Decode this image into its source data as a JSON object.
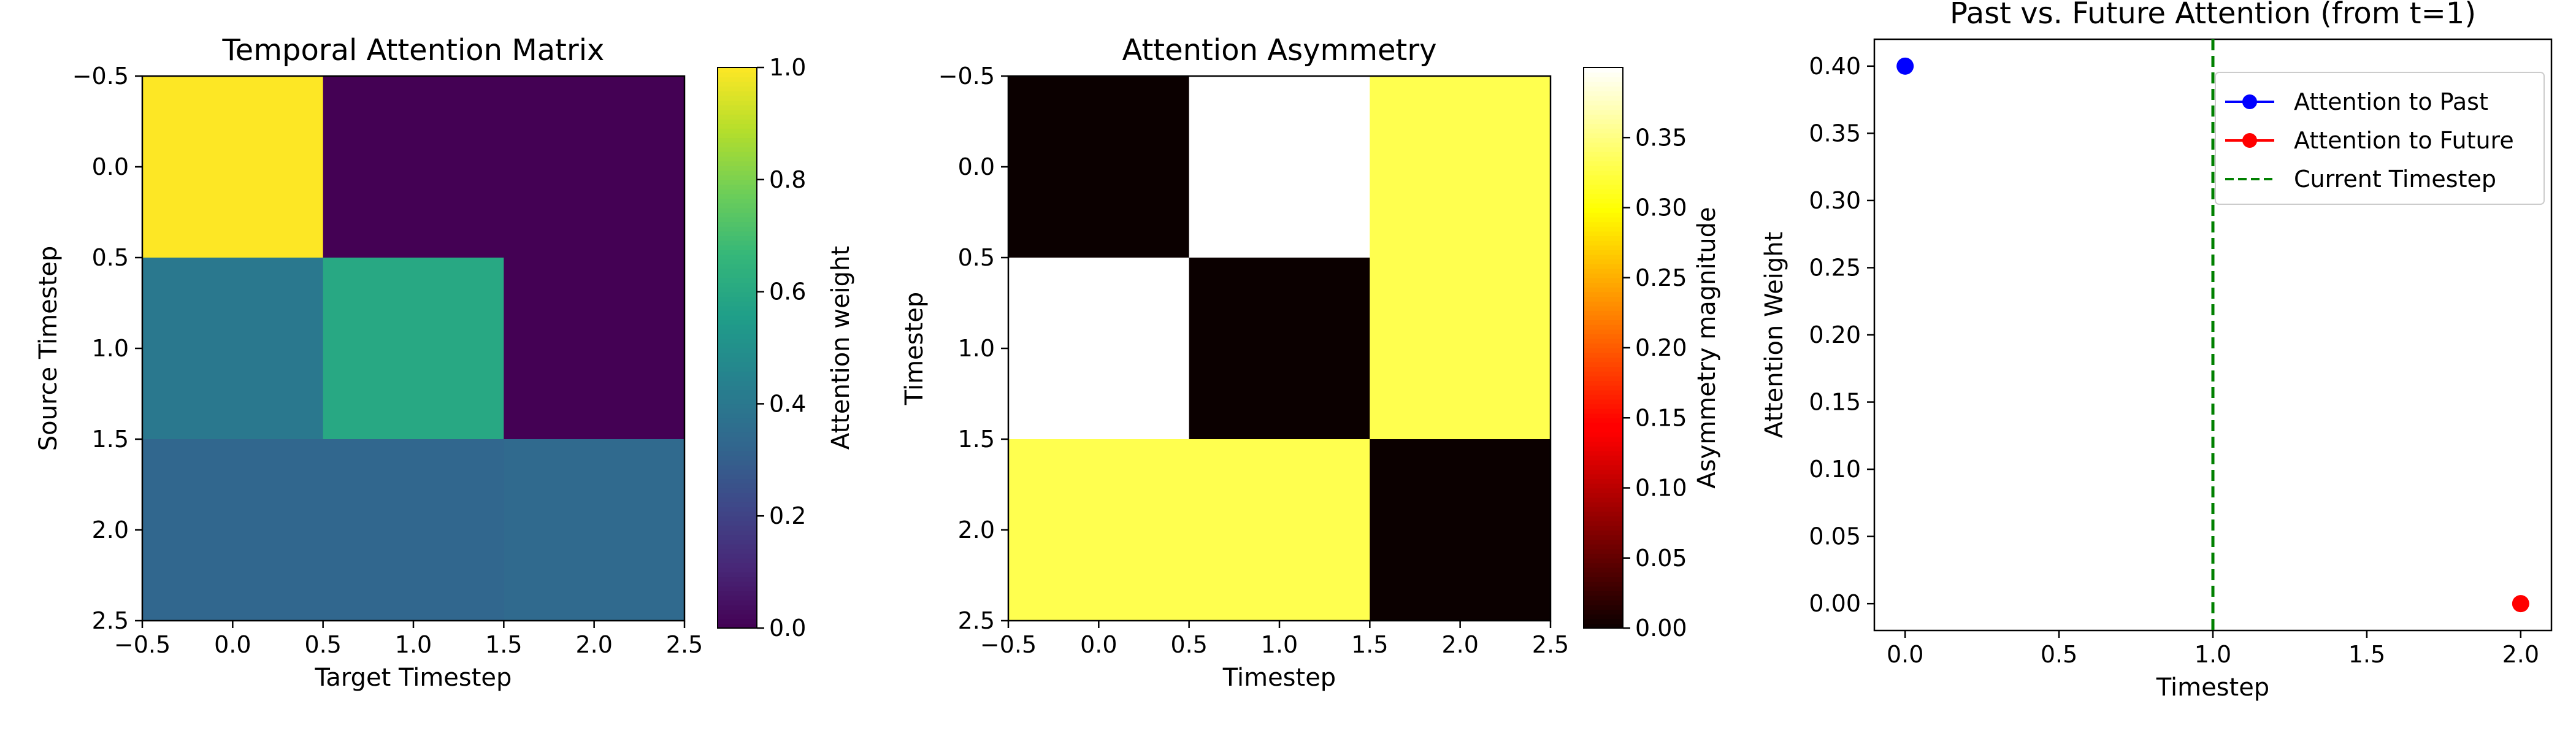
{
  "chart_data": [
    {
      "type": "heatmap",
      "title": "Temporal Attention Matrix",
      "xlabel": "Target Timestep",
      "ylabel": "Source Timestep",
      "xlim": [
        -0.5,
        2.5
      ],
      "ylim": [
        2.5,
        -0.5
      ],
      "xticks": [
        -0.5,
        0.0,
        0.5,
        1.0,
        1.5,
        2.0,
        2.5
      ],
      "yticks": [
        -0.5,
        0.0,
        0.5,
        1.0,
        1.5,
        2.0,
        2.5
      ],
      "colormap": "viridis",
      "values": [
        [
          1.0,
          0.0,
          0.0
        ],
        [
          0.4,
          0.6,
          0.0
        ],
        [
          0.33,
          0.33,
          0.34
        ]
      ],
      "colorbar": {
        "label": "Attention weight",
        "range": [
          0.0,
          1.0
        ],
        "ticks": [
          0.0,
          0.2,
          0.4,
          0.6,
          0.8,
          1.0
        ]
      }
    },
    {
      "type": "heatmap",
      "title": "Attention Asymmetry",
      "xlabel": "Timestep",
      "ylabel": "Timestep",
      "xlim": [
        -0.5,
        2.5
      ],
      "ylim": [
        2.5,
        -0.5
      ],
      "xticks": [
        -0.5,
        0.0,
        0.5,
        1.0,
        1.5,
        2.0,
        2.5
      ],
      "yticks": [
        -0.5,
        0.0,
        0.5,
        1.0,
        1.5,
        2.0,
        2.5
      ],
      "colormap": "hot",
      "values": [
        [
          0.0,
          0.4,
          0.33
        ],
        [
          0.4,
          0.0,
          0.33
        ],
        [
          0.33,
          0.33,
          0.0
        ]
      ],
      "colorbar": {
        "label": "Asymmetry magnitude",
        "range": [
          0.0,
          0.4
        ],
        "ticks": [
          0.0,
          0.05,
          0.1,
          0.15,
          0.2,
          0.25,
          0.3,
          0.35
        ]
      }
    },
    {
      "type": "scatter",
      "title": "Past vs. Future Attention (from t=1)",
      "xlabel": "Timestep",
      "ylabel": "Attention Weight",
      "xlim": [
        -0.1,
        2.1
      ],
      "ylim": [
        -0.02,
        0.42
      ],
      "xticks": [
        0.0,
        0.5,
        1.0,
        1.5,
        2.0
      ],
      "yticks": [
        0.0,
        0.05,
        0.1,
        0.15,
        0.2,
        0.25,
        0.3,
        0.35,
        0.4
      ],
      "grid": false,
      "legend_position": "top-right",
      "series": [
        {
          "name": "Attention to Past",
          "color": "#0000ff",
          "x": [
            0
          ],
          "y": [
            0.4
          ]
        },
        {
          "name": "Attention to Future",
          "color": "#ff0000",
          "x": [
            2
          ],
          "y": [
            0.0
          ]
        }
      ],
      "vline": {
        "name": "Current Timestep",
        "x": 1.0,
        "color": "#008000",
        "style": "dashed"
      }
    }
  ]
}
